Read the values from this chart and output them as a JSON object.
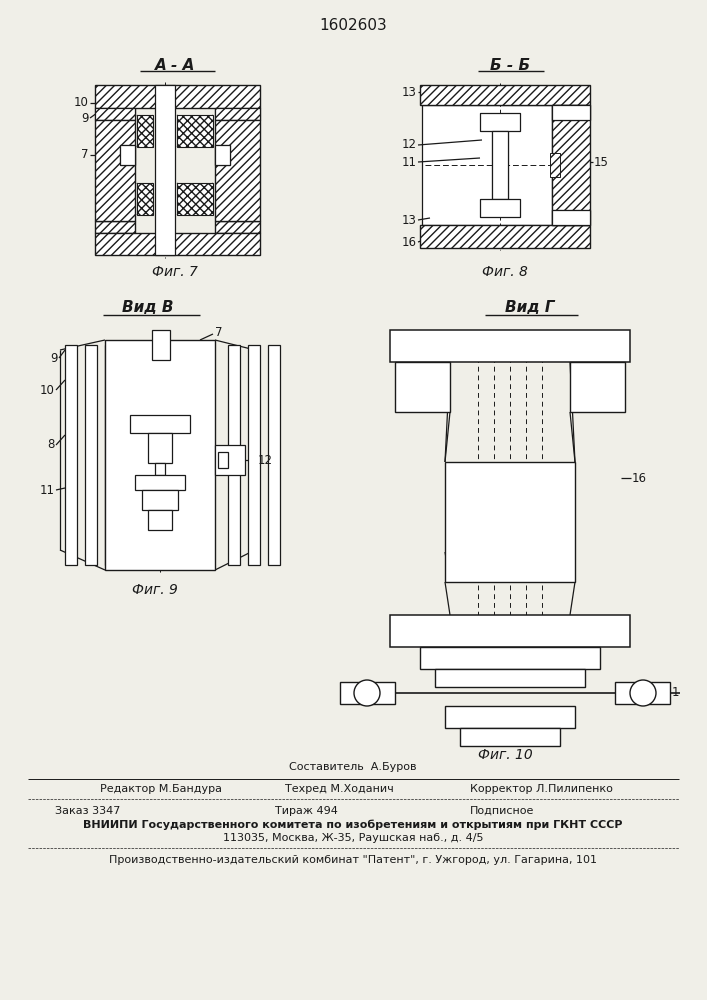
{
  "patent_number": "1602603",
  "bg": "#f0efe8",
  "lc": "#1a1a1a",
  "label_aa": "А - А",
  "label_bb": "Б - Б",
  "label_vidb": "Вид В",
  "label_vidg": "Вид Г",
  "label_fig7": "Фиг. 7",
  "label_fig8": "Фиг. 8",
  "label_fig9": "Фиг. 9",
  "label_fig10": "Фиг. 10",
  "footer_sestavitel": "Составитель  А.Буров",
  "footer_redaktor": "Редактор М.Бандура",
  "footer_tehred": "Техред М.Ходанич",
  "footer_korrektor": "Корректор Л.Пилипенко",
  "footer_zakaz": "Заказ 3347",
  "footer_tirazh": "Тираж 494",
  "footer_podpisnoe": "Подписное",
  "footer_vniip": "ВНИИПИ Государственного комитета по изобретениям и открытиям при ГКНТ СССР",
  "footer_address": "113035, Москва, Ж-35, Раушская наб., д. 4/5",
  "footer_combo": "Производственно-издательский комбинат \"Патент\", г. Ужгород, ул. Гагарина, 101"
}
